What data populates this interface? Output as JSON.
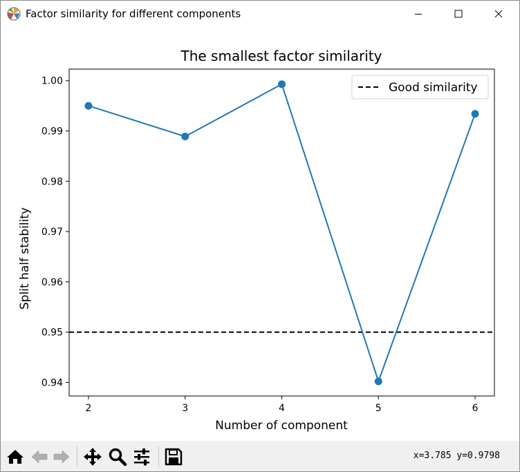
{
  "window": {
    "title": "Factor similarity for different components",
    "controls": {
      "minimize": "minimize",
      "maximize": "maximize",
      "close": "close"
    }
  },
  "toolbar": {
    "buttons": [
      {
        "name": "home",
        "icon": "home-icon"
      },
      {
        "name": "back",
        "icon": "arrow-left-icon"
      },
      {
        "name": "forward",
        "icon": "arrow-right-icon"
      },
      {
        "name": "pan",
        "icon": "move-icon"
      },
      {
        "name": "zoom",
        "icon": "search-icon"
      },
      {
        "name": "configure-subplots",
        "icon": "sliders-icon"
      },
      {
        "name": "save",
        "icon": "save-icon"
      }
    ],
    "coordinates": "x=3.785 y=0.9798"
  },
  "chart_data": {
    "type": "line",
    "title": "The smallest factor similarity",
    "xlabel": "Number of component",
    "ylabel": "Split half stability",
    "xlim": [
      1.8,
      6.2
    ],
    "ylim": [
      0.9373,
      1.0023
    ],
    "xticks": [
      2,
      3,
      4,
      5,
      6
    ],
    "yticks": [
      0.94,
      0.95,
      0.96,
      0.97,
      0.98,
      0.99,
      1.0
    ],
    "ytick_labels": [
      "0.94",
      "0.95",
      "0.96",
      "0.97",
      "0.98",
      "0.99",
      "1.00"
    ],
    "series": [
      {
        "x": [
          2,
          3,
          4,
          5,
          6
        ],
        "values": [
          0.995,
          0.9889,
          0.9993,
          0.9402,
          0.9934
        ],
        "color": "#1f77b4",
        "marker": "circle"
      }
    ],
    "reference_lines": [
      {
        "name": "Good similarity",
        "y": 0.95,
        "style": "dashed",
        "color": "#000000"
      }
    ],
    "legend_position": "top-right",
    "grid": false
  }
}
